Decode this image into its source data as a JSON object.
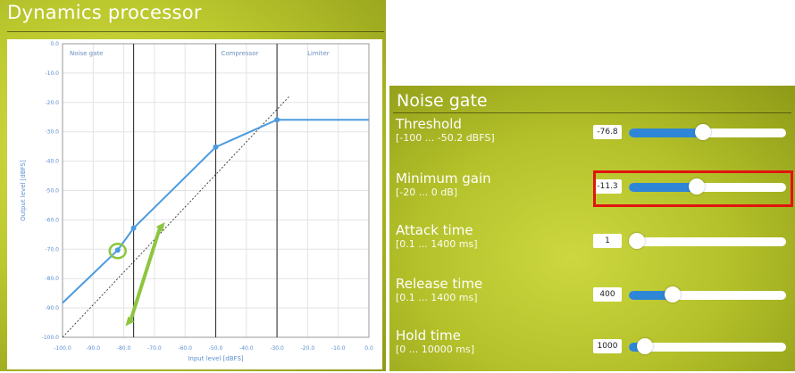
{
  "left_panel": {
    "title": "Dynamics processor"
  },
  "chart_data": {
    "type": "line",
    "xlabel": "Input level [dBFS]",
    "ylabel": "Output level [dBFS]",
    "xlim": [
      -100,
      0
    ],
    "ylim": [
      -100,
      0
    ],
    "x_ticks": [
      "-100.0",
      "-90.0",
      "-80.0",
      "-70.0",
      "-60.0",
      "-50.0",
      "-40.0",
      "-30.0",
      "-20.0",
      "-10.0",
      "0.0"
    ],
    "y_ticks": [
      "0.0",
      "-10.0",
      "-20.0",
      "-30.0",
      "-40.0",
      "-50.0",
      "-60.0",
      "-70.0",
      "-80.0",
      "-90.0",
      "-100.0"
    ],
    "regions": [
      "Noise gate",
      "Compressor",
      "Limiter"
    ],
    "region_boundaries": [
      -76.8,
      -50.0,
      -30.0
    ],
    "grid": true,
    "series": [
      {
        "x": [
          -100,
          -82,
          -76.8,
          -50,
          -30,
          0
        ],
        "y": [
          -88.3,
          -70.3,
          -62.8,
          -35.2,
          -25.9,
          -25.9
        ]
      },
      {
        "x": [
          -100,
          -30
        ],
        "y": [
          -100,
          -30
        ]
      }
    ],
    "curve_color": "#4a9be0",
    "highlight_color": "#8cc63f"
  },
  "noise_gate": {
    "title": "Noise gate",
    "params": [
      {
        "name": "Threshold",
        "range": "[-100 ... -50.2 dBFS]",
        "value": "-76.8",
        "fraction": 0.47
      },
      {
        "name": "Minimum gain",
        "range": "[-20 ... 0 dB]",
        "value": "-11.3",
        "fraction": 0.43
      },
      {
        "name": "Attack time",
        "range": "[0.1 ... 1400 ms]",
        "value": "1",
        "fraction": 0.0
      },
      {
        "name": "Release time",
        "range": "[0.1 ... 1400 ms]",
        "value": "400",
        "fraction": 0.28
      },
      {
        "name": "Hold time",
        "range": "[0 ... 10000 ms]",
        "value": "1000",
        "fraction": 0.1
      }
    ]
  },
  "colors": {
    "accent": "#2f86d6",
    "highlight_box": "#e0140f"
  }
}
